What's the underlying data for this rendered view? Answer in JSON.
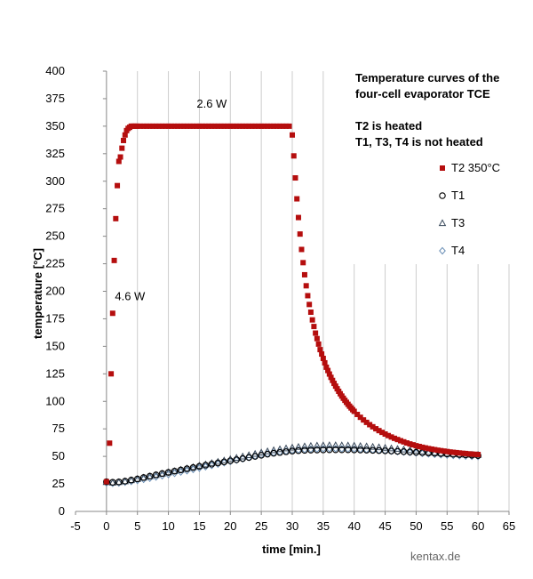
{
  "colors": {
    "T2": "#b50e0e",
    "T1": "#000000",
    "T3": "#3a4a5c",
    "T4": "#6a8fb6",
    "grid": "#cccccc"
  },
  "chart_data": {
    "type": "scatter",
    "title_lines": [
      "Temperature curves of the",
      "four-cell evaporator TCE"
    ],
    "subtitle_lines": [
      "T2 is heated",
      "T1, T3, T4 is not heated"
    ],
    "xlabel": "time [min.]",
    "ylabel": "temperature [°C]",
    "xlim": [
      -5,
      65
    ],
    "ylim": [
      0,
      400
    ],
    "xticks": [
      -5,
      0,
      5,
      10,
      15,
      20,
      25,
      30,
      35,
      40,
      45,
      50,
      55,
      60,
      65
    ],
    "yticks": [
      0,
      25,
      50,
      75,
      100,
      125,
      150,
      175,
      200,
      225,
      250,
      275,
      300,
      325,
      350,
      375,
      400
    ],
    "grid": "vertical",
    "legend_position": "right",
    "annotations": [
      {
        "text": "2.6 W",
        "x": 17,
        "y": 370
      },
      {
        "text": "4.6 W",
        "x": 3.8,
        "y": 195
      }
    ],
    "watermark": "kentax.de",
    "series": [
      {
        "name": "T2 350°C",
        "marker": "square",
        "x": [
          0.0,
          0.5,
          0.75,
          1.0,
          1.25,
          1.5,
          1.75,
          2.0,
          2.25,
          2.5,
          2.75,
          3.0,
          3.25,
          3.5,
          3.75,
          4.0,
          4.25,
          4.5,
          4.75,
          5.0,
          5.5,
          6,
          6.5,
          7,
          7.5,
          8,
          8.5,
          9,
          9.5,
          10,
          10.5,
          11,
          11.5,
          12,
          12.5,
          13,
          13.5,
          14,
          14.5,
          15,
          15.5,
          16,
          16.5,
          17,
          17.5,
          18,
          18.5,
          19,
          19.5,
          20,
          20.5,
          21,
          21.5,
          22,
          22.5,
          23,
          23.5,
          24,
          24.5,
          25,
          25.5,
          26,
          26.5,
          27,
          27.5,
          28,
          28.5,
          29,
          29.5,
          30,
          30.25,
          30.5,
          30.75,
          31,
          31.25,
          31.5,
          31.75,
          32,
          32.25,
          32.5,
          32.75,
          33,
          33.25,
          33.5,
          33.75,
          34,
          34.25,
          34.5,
          34.75,
          35,
          35.25,
          35.5,
          35.75,
          36,
          36.25,
          36.5,
          36.75,
          37,
          37.25,
          37.5,
          37.75,
          38,
          38.25,
          38.5,
          38.75,
          39,
          39.25,
          39.5,
          39.75,
          40,
          40.5,
          41,
          41.5,
          42,
          42.5,
          43,
          43.5,
          44,
          44.5,
          45,
          45.5,
          46,
          46.5,
          47,
          47.5,
          48,
          48.5,
          49,
          49.5,
          50,
          50.5,
          51,
          51.5,
          52,
          52.5,
          53,
          53.5,
          54,
          54.5,
          55,
          55.5,
          56,
          56.5,
          57,
          57.5,
          58,
          58.5,
          59,
          59.5,
          60
        ],
        "y": [
          27,
          62,
          125,
          180,
          228,
          266,
          296,
          318,
          322,
          330,
          337,
          342,
          346,
          348,
          349,
          350,
          350,
          350,
          350,
          350,
          350,
          350,
          350,
          350,
          350,
          350,
          350,
          350,
          350,
          350,
          350,
          350,
          350,
          350,
          350,
          350,
          350,
          350,
          350,
          350,
          350,
          350,
          350,
          350,
          350,
          350,
          350,
          350,
          350,
          350,
          350,
          350,
          350,
          350,
          350,
          350,
          350,
          350,
          350,
          350,
          350,
          350,
          350,
          350,
          350,
          350,
          350,
          350,
          350,
          342,
          323,
          303,
          284,
          267,
          252,
          238,
          226,
          215,
          205,
          196,
          188,
          181,
          174,
          168,
          162,
          157,
          152,
          147,
          143,
          139,
          135,
          131,
          128,
          124.8,
          121.8,
          119,
          116.3,
          113.8,
          111.4,
          109.1,
          106.9,
          104.8,
          102.8,
          100.9,
          99.1,
          97.3,
          95.6,
          94,
          92.4,
          90.9,
          88.1,
          85.5,
          83.1,
          80.9,
          78.8,
          76.9,
          75.1,
          73.4,
          71.8,
          70.3,
          68.9,
          67.6,
          66.4,
          65.3,
          64.2,
          63.2,
          62.2,
          61.3,
          60.5,
          59.7,
          59,
          58.3,
          57.7,
          57.1,
          56.6,
          56.1,
          55.6,
          55.2,
          54.8,
          54.4,
          54,
          53.7,
          53.4,
          53.1,
          52.8,
          52.6,
          52.3,
          52.1,
          51.9,
          51.7
        ]
      },
      {
        "name": "T1",
        "marker": "circle",
        "x": [
          0,
          1,
          2,
          3,
          4,
          5,
          6,
          7,
          8,
          9,
          10,
          11,
          12,
          13,
          14,
          15,
          16,
          17,
          18,
          19,
          20,
          21,
          22,
          23,
          24,
          25,
          26,
          27,
          28,
          29,
          30,
          31,
          32,
          33,
          34,
          35,
          36,
          37,
          38,
          39,
          40,
          41,
          42,
          43,
          44,
          45,
          46,
          47,
          48,
          49,
          50,
          51,
          52,
          53,
          54,
          55,
          56,
          57,
          58,
          59,
          60
        ],
        "y": [
          27,
          26.5,
          26.8,
          27.5,
          28.5,
          29.5,
          30.8,
          32,
          33.2,
          34.4,
          35.5,
          36.6,
          37.7,
          38.8,
          39.9,
          41,
          42,
          43,
          44,
          45,
          46,
          47,
          48,
          49,
          50,
          51,
          52,
          52.8,
          53.5,
          54.2,
          54.8,
          55.2,
          55.5,
          55.7,
          55.8,
          55.9,
          56,
          56,
          56,
          56,
          55.9,
          55.8,
          55.7,
          55.5,
          55.3,
          55.1,
          54.9,
          54.6,
          54.3,
          54,
          53.7,
          53.4,
          53.1,
          52.8,
          52.5,
          52.2,
          51.9,
          51.6,
          51.3,
          51,
          50.7
        ]
      },
      {
        "name": "T3",
        "marker": "triangle",
        "x": [
          0,
          1,
          2,
          3,
          4,
          5,
          6,
          7,
          8,
          9,
          10,
          11,
          12,
          13,
          14,
          15,
          16,
          17,
          18,
          19,
          20,
          21,
          22,
          23,
          24,
          25,
          26,
          27,
          28,
          29,
          30,
          31,
          32,
          33,
          34,
          35,
          36,
          37,
          38,
          39,
          40,
          41,
          42,
          43,
          44,
          45,
          46,
          47,
          48,
          49,
          50,
          51,
          52,
          53,
          54,
          55,
          56,
          57,
          58,
          59,
          60
        ],
        "y": [
          26.5,
          26,
          26.5,
          27.3,
          28.3,
          29.4,
          30.6,
          31.8,
          33,
          34.2,
          35.4,
          36.6,
          37.8,
          39,
          40.2,
          41.4,
          42.6,
          43.8,
          45,
          46.2,
          47.4,
          48.6,
          49.8,
          51,
          52.2,
          53.4,
          54.5,
          55.5,
          56.4,
          57.2,
          57.9,
          58.5,
          59,
          59.4,
          59.7,
          59.9,
          60,
          60,
          59.9,
          59.8,
          59.6,
          59.3,
          59,
          58.6,
          58.2,
          57.7,
          57.2,
          56.7,
          56.1,
          55.5,
          54.9,
          54.3,
          53.8,
          53.3,
          52.8,
          52.4,
          52,
          51.7,
          51.5,
          51.4,
          51.3
        ]
      },
      {
        "name": "T4",
        "marker": "diamond",
        "x": [
          0,
          1,
          2,
          3,
          4,
          5,
          6,
          7,
          8,
          9,
          10,
          11,
          12,
          13,
          14,
          15,
          16,
          17,
          18,
          19,
          20,
          21,
          22,
          23,
          24,
          25,
          26,
          27,
          28,
          29,
          30,
          31,
          32,
          33,
          34,
          35,
          36,
          37,
          38,
          39,
          40,
          41,
          42,
          43,
          44,
          45,
          46,
          47,
          48,
          49,
          50,
          51,
          52,
          53,
          54,
          55,
          56,
          57,
          58,
          59,
          60
        ],
        "y": [
          26,
          25.5,
          25.8,
          26.5,
          27.3,
          28.2,
          29.2,
          30.2,
          31.3,
          32.4,
          33.5,
          34.6,
          35.8,
          37,
          38.2,
          39.4,
          40.6,
          41.8,
          43,
          44.2,
          45.4,
          46.6,
          47.8,
          49,
          50.2,
          51.3,
          52.3,
          53.2,
          54,
          54.7,
          55.3,
          55.8,
          56.2,
          56.5,
          56.7,
          56.9,
          57,
          57,
          56.9,
          56.8,
          56.6,
          56.4,
          56.1,
          55.8,
          55.5,
          55.1,
          54.7,
          54.3,
          53.9,
          53.5,
          53.1,
          52.7,
          52.3,
          51.9,
          51.5,
          51.2,
          50.9,
          50.6,
          50.3,
          50.1,
          49.9
        ]
      }
    ]
  }
}
